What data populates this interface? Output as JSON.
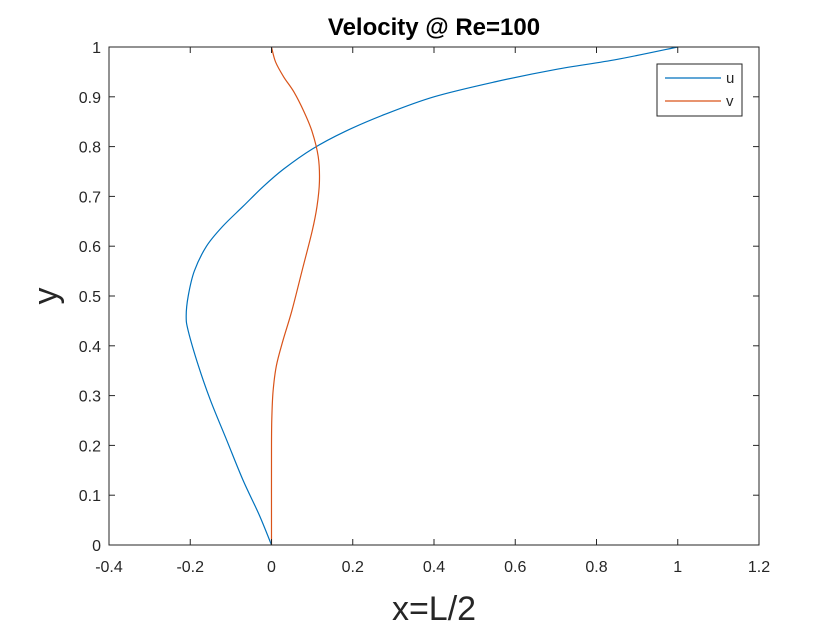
{
  "chart_data": {
    "type": "line",
    "title": "Velocity @ Re=100",
    "xlabel": "x=L/2",
    "ylabel": "y",
    "xlim": [
      -0.4,
      1.2
    ],
    "ylim": [
      0,
      1
    ],
    "xticks": [
      "-0.4",
      "-0.2",
      "0",
      "0.2",
      "0.4",
      "0.6",
      "0.8",
      "1",
      "1.2"
    ],
    "yticks": [
      "0",
      "0.1",
      "0.2",
      "0.3",
      "0.4",
      "0.5",
      "0.6",
      "0.7",
      "0.8",
      "0.9",
      "1"
    ],
    "grid": false,
    "box": true,
    "legend": {
      "placement": "top-right",
      "entries": [
        "u",
        "v"
      ]
    },
    "series": [
      {
        "name": "u",
        "color": "#0072BD",
        "x": [
          0,
          -0.03,
          -0.07,
          -0.11,
          -0.15,
          -0.18,
          -0.205,
          -0.21,
          -0.205,
          -0.19,
          -0.16,
          -0.12,
          -0.07,
          -0.02,
          0.03,
          0.1,
          0.18,
          0.28,
          0.4,
          0.55,
          0.7,
          0.85,
          1.0
        ],
        "y": [
          0,
          0.06,
          0.13,
          0.21,
          0.29,
          0.36,
          0.43,
          0.46,
          0.5,
          0.55,
          0.6,
          0.64,
          0.68,
          0.72,
          0.755,
          0.795,
          0.83,
          0.865,
          0.9,
          0.93,
          0.955,
          0.975,
          1.0
        ]
      },
      {
        "name": "v",
        "color": "#D95319",
        "x": [
          0,
          0,
          0.001,
          0.004,
          0.012,
          0.028,
          0.05,
          0.075,
          0.1,
          0.112,
          0.118,
          0.115,
          0.1,
          0.08,
          0.055,
          0.03,
          0.01,
          0
        ],
        "y": [
          0,
          0.2,
          0.26,
          0.31,
          0.36,
          0.41,
          0.47,
          0.55,
          0.63,
          0.68,
          0.73,
          0.78,
          0.83,
          0.87,
          0.91,
          0.94,
          0.97,
          1.0
        ]
      }
    ]
  }
}
